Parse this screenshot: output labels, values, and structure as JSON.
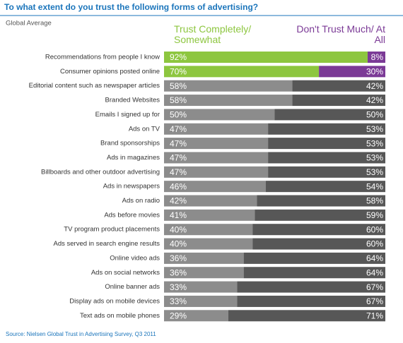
{
  "chart_data": {
    "type": "stacked-bar",
    "title": "To what extent do you trust the following forms of advertising?",
    "subtitle": "Global Average",
    "source": "Source: Nielsen Global Trust in Advertising Survey, Q3 2011",
    "categories": [
      "Recommendations from people I know",
      "Consumer opinions posted online",
      "Editorial content such as newspaper articles",
      "Branded Websites",
      "Emails I signed up for",
      "Ads on TV",
      "Brand sponsorships",
      "Ads in magazines",
      "Billboards and other outdoor advertising",
      "Ads in newspapers",
      "Ads on radio",
      "Ads before movies",
      "TV program product placements",
      "Ads served in search engine results",
      "Online video ads",
      "Ads on social networks",
      "Online banner ads",
      "Display ads on mobile devices",
      "Text ads on mobile phones"
    ],
    "series": [
      {
        "name": "Trust Completely/ Somewhat",
        "color": "#8dc63f",
        "colors": [
          "#8dc63f",
          "#8dc63f",
          "#8c8c8c",
          "#8c8c8c",
          "#8c8c8c",
          "#8c8c8c",
          "#8c8c8c",
          "#8c8c8c",
          "#8c8c8c",
          "#8c8c8c",
          "#8c8c8c",
          "#8c8c8c",
          "#8c8c8c",
          "#8c8c8c",
          "#8c8c8c",
          "#8c8c8c",
          "#8c8c8c",
          "#8c8c8c",
          "#8c8c8c"
        ],
        "values": [
          92,
          70,
          58,
          58,
          50,
          47,
          47,
          47,
          47,
          46,
          42,
          41,
          40,
          40,
          36,
          36,
          33,
          33,
          29
        ],
        "value_labels": [
          "92%",
          "70%",
          "58%",
          "58%",
          "50%",
          "47%",
          "47%",
          "47%",
          "47%",
          "46%",
          "42%",
          "41%",
          "40%",
          "40%",
          "36%",
          "36%",
          "33%",
          "33%",
          "29%"
        ]
      },
      {
        "name": "Don't Trust Much/ At All",
        "color": "#7b3a96",
        "colors": [
          "#7b3a96",
          "#7b3a96",
          "#575757",
          "#575757",
          "#575757",
          "#575757",
          "#575757",
          "#575757",
          "#575757",
          "#575757",
          "#575757",
          "#575757",
          "#575757",
          "#575757",
          "#575757",
          "#575757",
          "#575757",
          "#575757",
          "#575757"
        ],
        "values": [
          8,
          30,
          42,
          42,
          50,
          53,
          53,
          53,
          53,
          54,
          58,
          59,
          60,
          60,
          64,
          64,
          67,
          67,
          71
        ],
        "value_labels": [
          "8%",
          "30%",
          "42%",
          "42%",
          "50%",
          "53%",
          "53%",
          "53%",
          "53%",
          "54%",
          "58%",
          "59%",
          "60%",
          "60%",
          "64%",
          "64%",
          "67%",
          "67%",
          "71%"
        ]
      }
    ],
    "xlim": [
      0,
      100
    ]
  }
}
